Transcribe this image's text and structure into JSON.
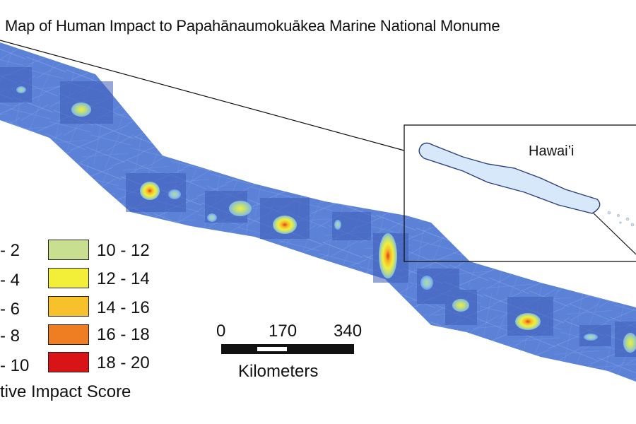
{
  "map": {
    "title": "Map of Human Impact to Papahānaumokuākea Marine National Monume",
    "inset_label": "Hawai’i",
    "colors": {
      "ocean_base": "#5c82d8",
      "ocean_dark": "#3f5cb9",
      "track_lines": "#8ea8ea",
      "hotspot_green": "#b6db8a",
      "hotspot_yellow": "#f2ef3c",
      "hotspot_orange": "#f5b324",
      "hotspot_red": "#e23b1c",
      "island_fill": "#d7e8fa"
    }
  },
  "legend": {
    "title": "tive Impact Score",
    "left_column": [
      {
        "label": "- 2"
      },
      {
        "label": "- 4"
      },
      {
        "label": "- 6"
      },
      {
        "label": "- 8"
      },
      {
        "label": "- 10"
      }
    ],
    "right_column": [
      {
        "label": "10 - 12",
        "color": "#c8df8f"
      },
      {
        "label": "12 - 14",
        "color": "#f3ef38"
      },
      {
        "label": "14 - 16",
        "color": "#f6c12a"
      },
      {
        "label": "16 - 18",
        "color": "#ef7d22"
      },
      {
        "label": "18 - 20",
        "color": "#d91416"
      }
    ]
  },
  "scale_bar": {
    "ticks": [
      "0",
      "170",
      "340"
    ],
    "unit": "Kilometers"
  }
}
